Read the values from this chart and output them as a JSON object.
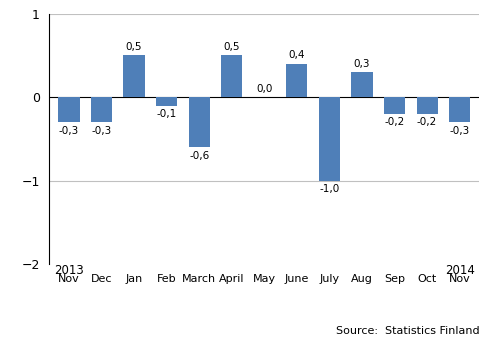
{
  "categories": [
    "Nov",
    "Dec",
    "Jan",
    "Feb",
    "March",
    "April",
    "May",
    "June",
    "July",
    "Aug",
    "Sep",
    "Oct",
    "Nov"
  ],
  "values": [
    -0.3,
    -0.3,
    0.5,
    -0.1,
    -0.6,
    0.5,
    0.0,
    0.4,
    -1.0,
    0.3,
    -0.2,
    -0.2,
    -0.3
  ],
  "bar_color": "#4f7fb8",
  "ylim": [
    -2,
    1
  ],
  "yticks": [
    -2,
    -1,
    0,
    1
  ],
  "source_text": "Source:  Statistics Finland",
  "year_2013": "2013",
  "year_2014": "2014"
}
